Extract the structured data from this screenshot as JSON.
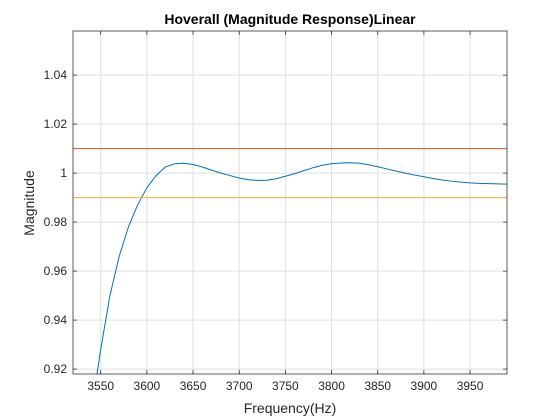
{
  "chart_data": {
    "type": "line",
    "title": "Hoverall (Magnitude Response)Linear",
    "xlabel": "Frequency(Hz)",
    "ylabel": "Magnitude",
    "xlim": [
      3520,
      3990
    ],
    "ylim": [
      0.918,
      1.058
    ],
    "xticks": [
      3550,
      3600,
      3650,
      3700,
      3750,
      3800,
      3850,
      3900,
      3950
    ],
    "yticks": [
      0.92,
      0.94,
      0.96,
      0.98,
      1.0,
      1.02,
      1.04
    ],
    "ytick_labels": [
      "0.92",
      "0.94",
      "0.96",
      "0.98",
      "1",
      "1.02",
      "1.04"
    ],
    "grid": true,
    "series": [
      {
        "color": "#0072BD",
        "x": [
          3546,
          3550,
          3560,
          3570,
          3580,
          3590,
          3600,
          3610,
          3620,
          3630,
          3640,
          3650,
          3660,
          3670,
          3680,
          3690,
          3700,
          3710,
          3720,
          3730,
          3740,
          3750,
          3760,
          3770,
          3780,
          3790,
          3800,
          3810,
          3820,
          3830,
          3840,
          3850,
          3860,
          3870,
          3880,
          3890,
          3900,
          3910,
          3920,
          3930,
          3940,
          3950,
          3960,
          3970,
          3980,
          3990
        ],
        "y": [
          0.918,
          0.928,
          0.95,
          0.966,
          0.978,
          0.987,
          0.994,
          0.999,
          1.0025,
          1.0038,
          1.004,
          1.0035,
          1.0025,
          1.0012,
          1.0,
          0.999,
          0.998,
          0.9973,
          0.997,
          0.9971,
          0.9977,
          0.9987,
          0.9998,
          1.001,
          1.0022,
          1.0032,
          1.0038,
          1.0041,
          1.0042,
          1.004,
          1.0034,
          1.0026,
          1.0017,
          1.0008,
          1.0,
          0.9992,
          0.9985,
          0.9978,
          0.9972,
          0.9967,
          0.9963,
          0.996,
          0.9958,
          0.9957,
          0.9956,
          0.9955
        ]
      },
      {
        "color": "#D95319",
        "x": [
          3520,
          3990
        ],
        "y": [
          1.01,
          1.01
        ]
      },
      {
        "color": "#EDB120",
        "x": [
          3520,
          3990
        ],
        "y": [
          0.99,
          0.99
        ]
      }
    ]
  }
}
